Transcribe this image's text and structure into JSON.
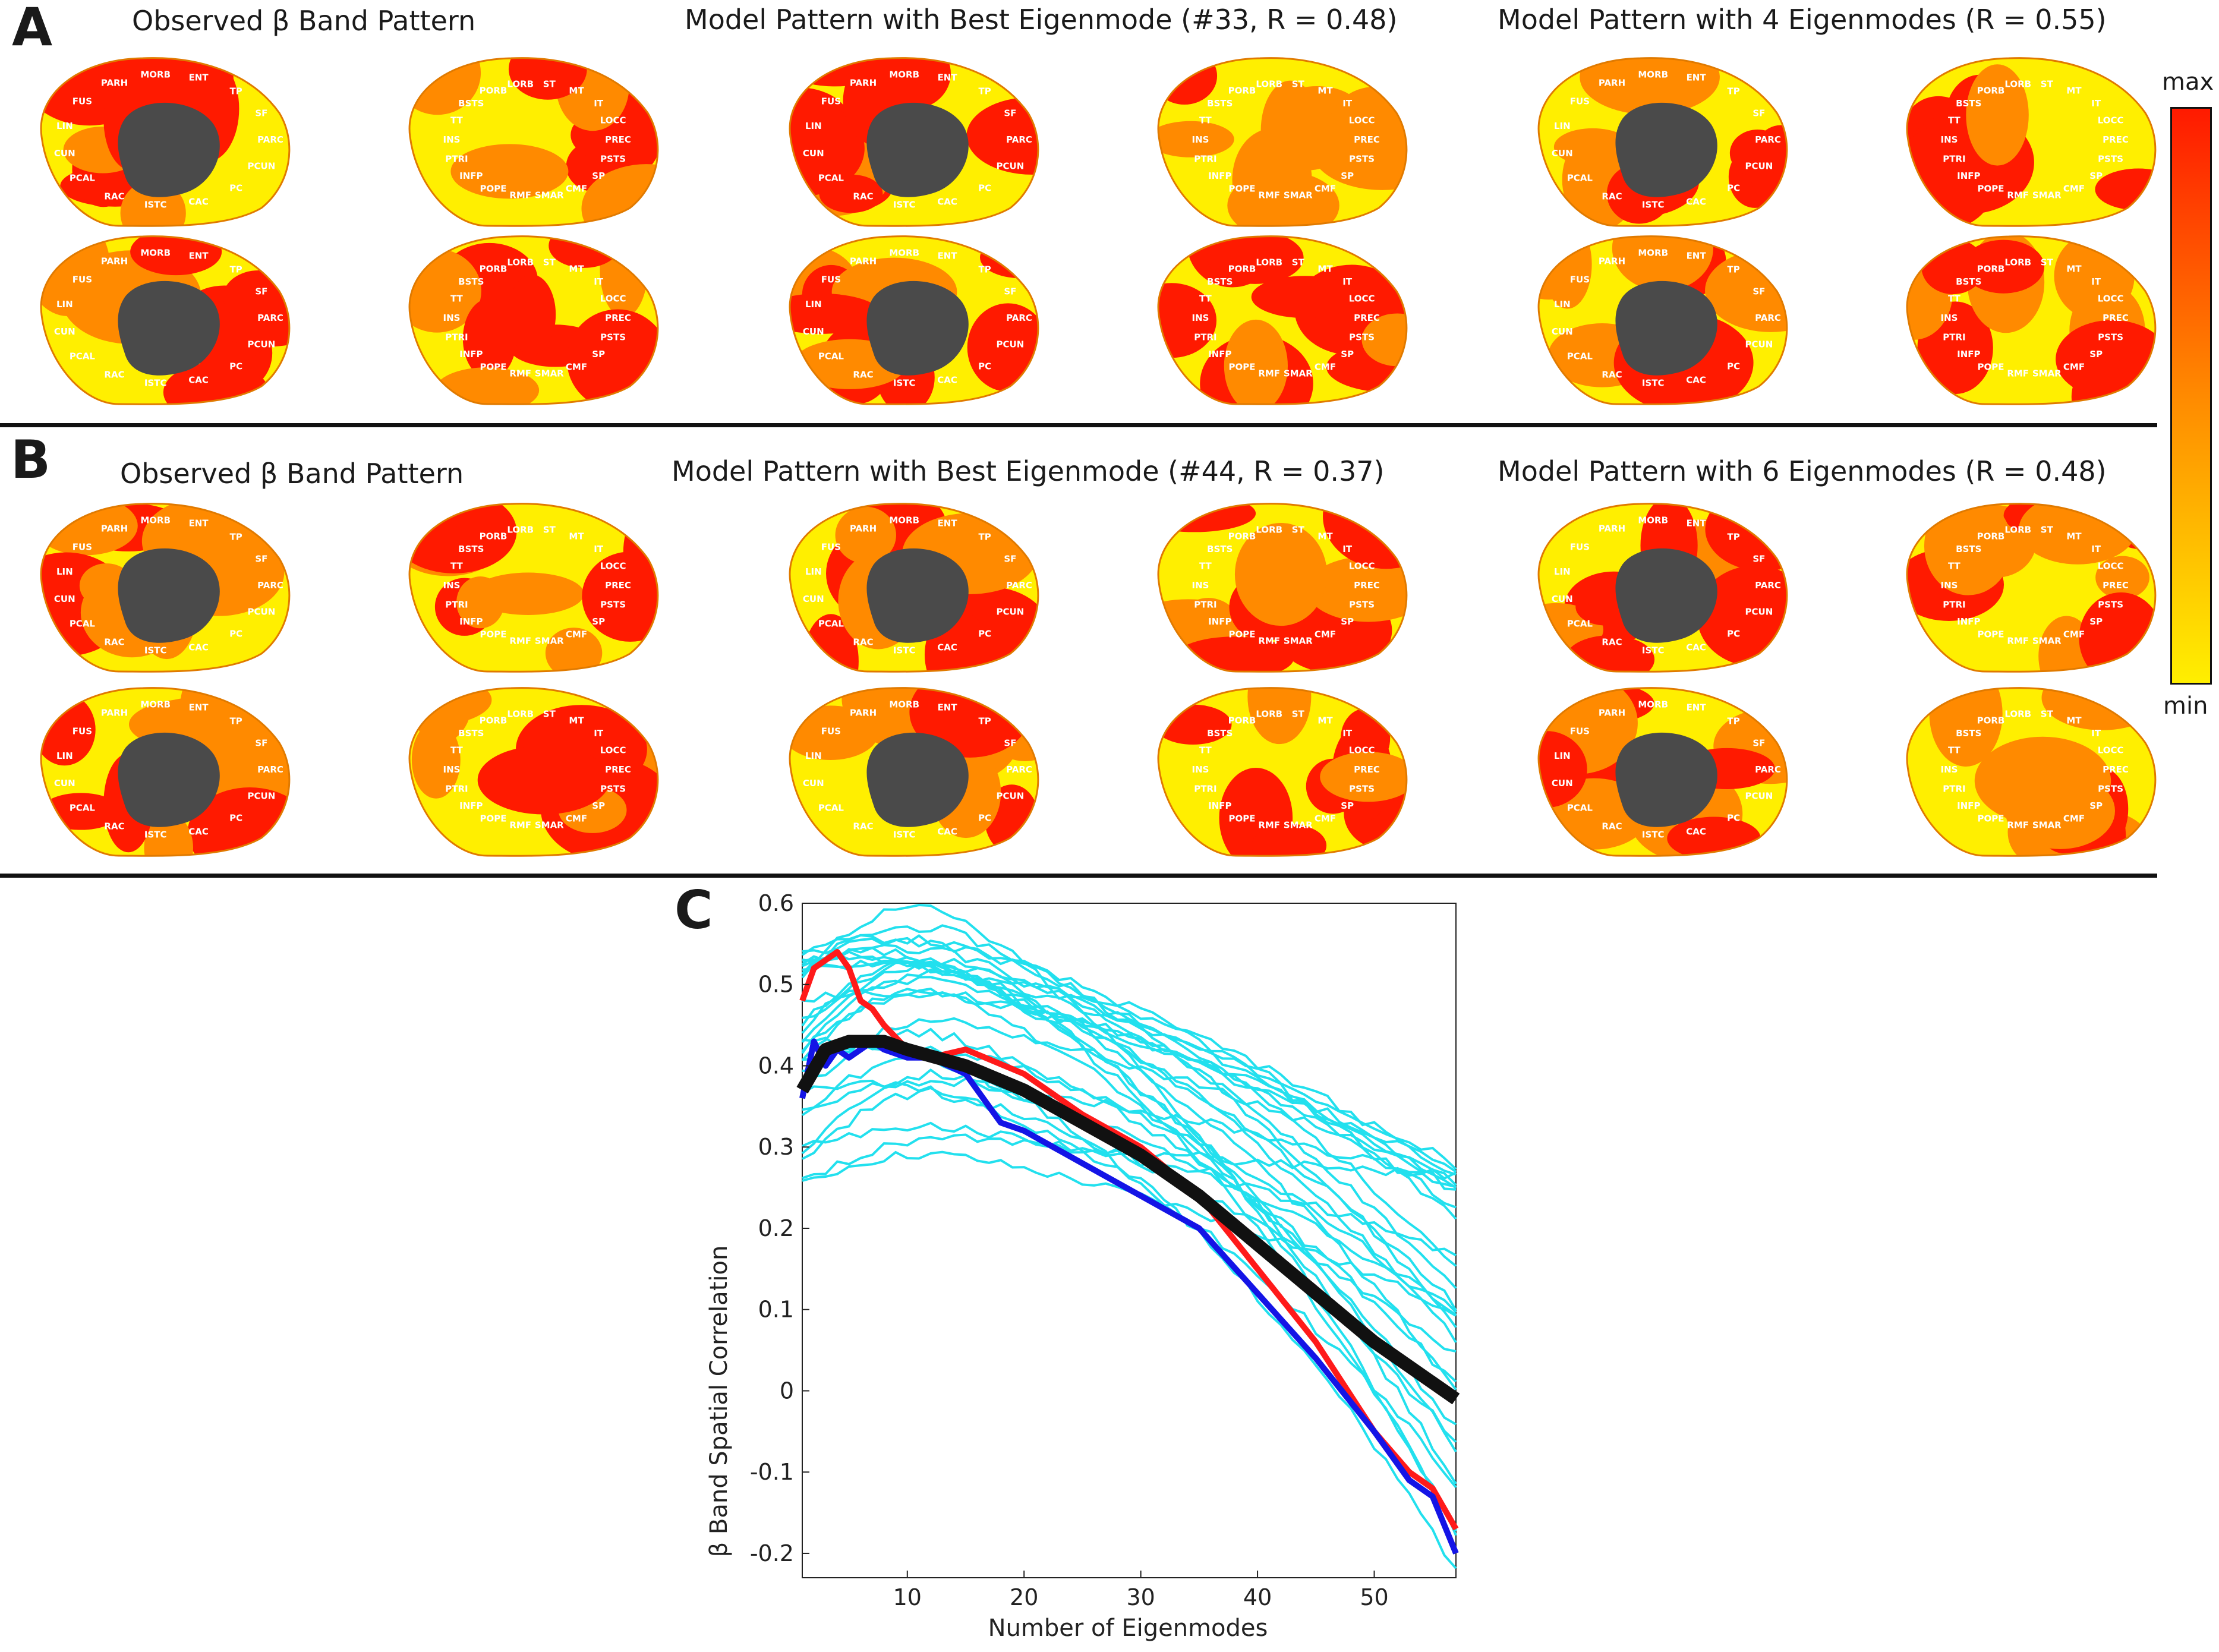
{
  "panel_a": {
    "letter": "A",
    "titles": [
      "Observed β Band Pattern",
      "Model Pattern with Best Eigenmode (#33, R = 0.48)",
      "Model Pattern with 4 Eigenmodes (R = 0.55)"
    ]
  },
  "panel_b": {
    "letter": "B",
    "titles": [
      "Observed β Band Pattern",
      "Model Pattern with Best Eigenmode (#44, R = 0.37)",
      "Model Pattern with 6 Eigenmodes (R = 0.48)"
    ]
  },
  "panel_c": {
    "letter": "C"
  },
  "colorbar": {
    "max_label": "max",
    "min_label": "min",
    "colors": [
      "#ff1a00",
      "#ff8a00",
      "#ffef00"
    ]
  },
  "region_labels": {
    "medial": [
      "PARC",
      "PCUN",
      "PC",
      "CAC",
      "ISTC",
      "RAC",
      "PCAL",
      "CUN",
      "LIN",
      "FUS",
      "PARH",
      "MORB",
      "ENT",
      "TP",
      "SF"
    ],
    "lateral": [
      "PREC",
      "PSTS",
      "SP",
      "CMF",
      "SMAR",
      "RMF",
      "POPE",
      "INFP",
      "PTRI",
      "INS",
      "TT",
      "BSTS",
      "PORB",
      "LORB",
      "ST",
      "MT",
      "IT",
      "LOCC"
    ]
  },
  "chart_data": {
    "type": "line",
    "xlabel": "Number of Eigenmodes",
    "ylabel": "β Band Spatial Correlation",
    "xlim": [
      1,
      57
    ],
    "ylim": [
      -0.23,
      0.6
    ],
    "xticks": [
      "10",
      "20",
      "30",
      "40",
      "50"
    ],
    "yticks": [
      "0.6",
      "0.5",
      "0.4",
      "0.3",
      "0.2",
      "0.1",
      "0",
      "-0.1",
      "-0.2"
    ],
    "series": [
      {
        "color": "#ff1a1a",
        "x": [
          1,
          2,
          3,
          4,
          5,
          6,
          7,
          8,
          10,
          12,
          15,
          20,
          25,
          30,
          35,
          40,
          45,
          50,
          53,
          55,
          57
        ],
        "y": [
          0.48,
          0.52,
          0.53,
          0.54,
          0.52,
          0.48,
          0.47,
          0.45,
          0.42,
          0.41,
          0.42,
          0.39,
          0.34,
          0.3,
          0.24,
          0.15,
          0.06,
          -0.05,
          -0.1,
          -0.12,
          -0.17
        ]
      },
      {
        "color": "#1414e6",
        "x": [
          1,
          2,
          3,
          4,
          5,
          6,
          7,
          8,
          10,
          12,
          15,
          18,
          20,
          25,
          30,
          35,
          40,
          45,
          50,
          53,
          55,
          57
        ],
        "y": [
          0.36,
          0.43,
          0.4,
          0.42,
          0.41,
          0.42,
          0.43,
          0.42,
          0.41,
          0.41,
          0.39,
          0.33,
          0.32,
          0.28,
          0.24,
          0.2,
          0.12,
          0.04,
          -0.05,
          -0.11,
          -0.13,
          -0.2
        ]
      },
      {
        "color": "#111111",
        "x": [
          1,
          3,
          5,
          8,
          10,
          15,
          20,
          25,
          30,
          35,
          40,
          45,
          50,
          55,
          57
        ],
        "y": [
          0.37,
          0.42,
          0.43,
          0.43,
          0.42,
          0.4,
          0.37,
          0.33,
          0.29,
          0.24,
          0.18,
          0.12,
          0.06,
          0.01,
          -0.01
        ]
      }
    ]
  }
}
